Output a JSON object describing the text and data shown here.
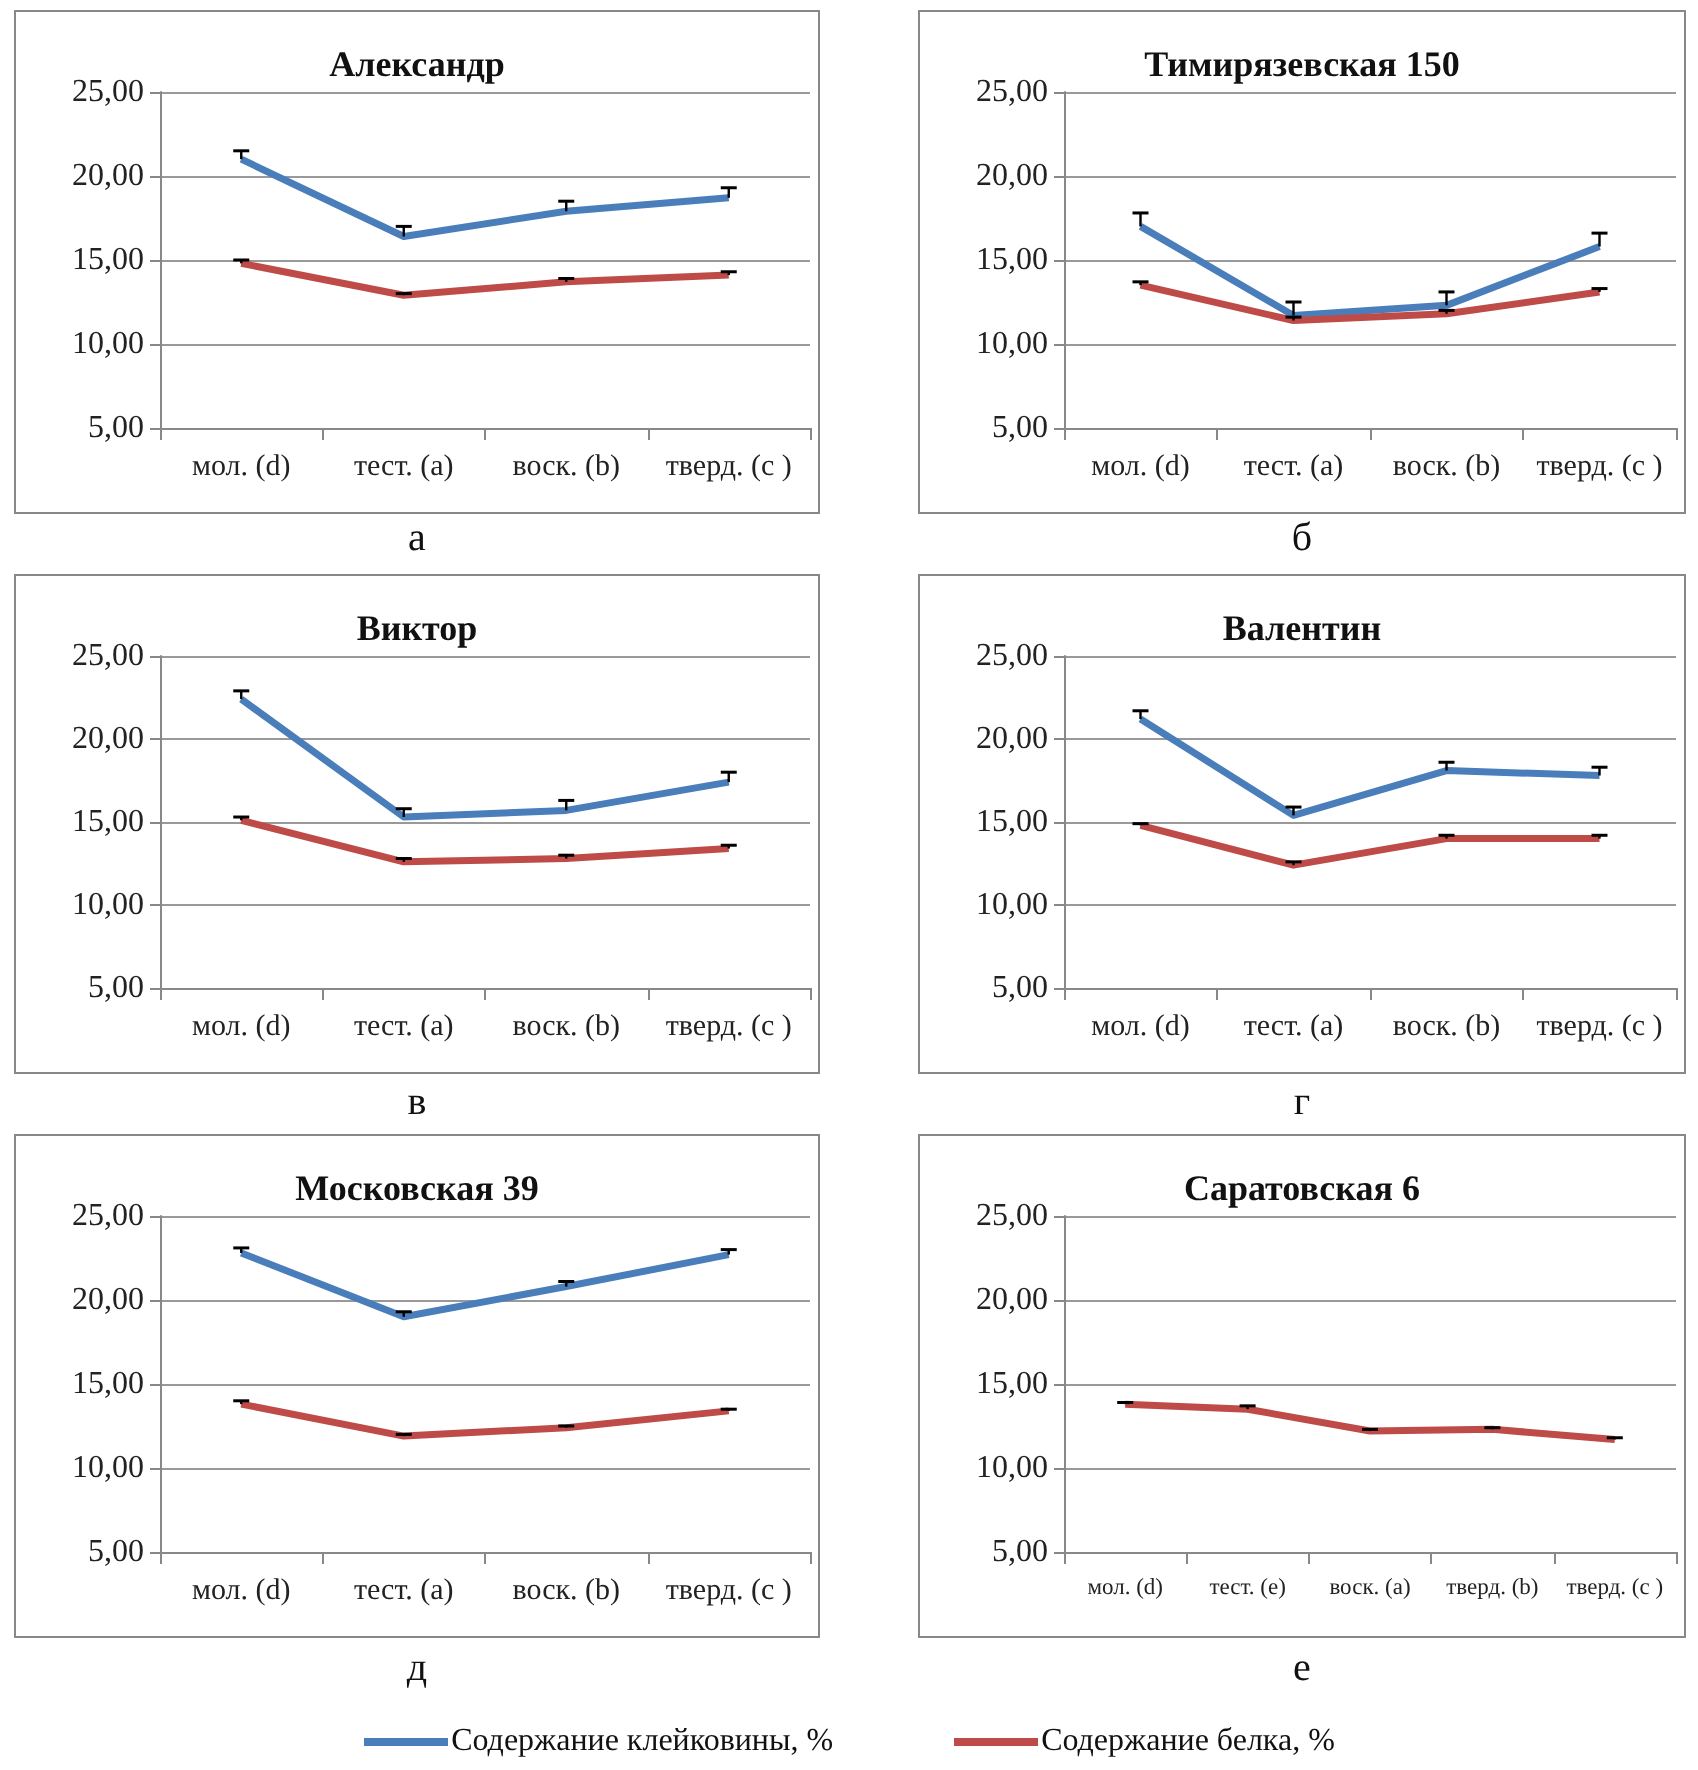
{
  "chart_data": [
    {
      "type": "line",
      "title": "Александр",
      "annotations": [
        "а"
      ],
      "categories": [
        "мол. (d)",
        "тест. (a)",
        "воск. (b)",
        "тверд. (c )"
      ],
      "ylim": [
        5,
        25
      ],
      "yticks": [
        {
          "value": 5,
          "label": "5,00"
        },
        {
          "value": 10,
          "label": "10,00"
        },
        {
          "value": 15,
          "label": "15,00"
        },
        {
          "value": 20,
          "label": "20,00"
        },
        {
          "value": 25,
          "label": "25,00"
        }
      ],
      "grid": "y",
      "marker": "none",
      "legend": "bottom",
      "series": [
        {
          "name": "Содержание клейковины, %",
          "color": "#4a7ebb",
          "values": [
            21.0,
            16.4,
            17.9,
            18.7
          ],
          "errors": [
            [
              21.0,
              21.5
            ],
            [
              16.4,
              17.0
            ],
            [
              17.9,
              18.5
            ],
            [
              18.7,
              19.3
            ]
          ]
        },
        {
          "name": "Содержание белка, %",
          "color": "#be4b48",
          "values": [
            14.8,
            12.9,
            13.7,
            14.1
          ],
          "errors": [
            [
              14.8,
              15.0
            ],
            [
              12.9,
              13.0
            ],
            [
              13.7,
              13.9
            ],
            [
              14.1,
              14.3
            ]
          ]
        }
      ]
    },
    {
      "type": "line",
      "title": "Тимирязевская 150",
      "annotations": [
        "б"
      ],
      "categories": [
        "мол. (d)",
        "тест. (a)",
        "воск. (b)",
        "тверд. (c )"
      ],
      "ylim": [
        5,
        25
      ],
      "yticks": [
        {
          "value": 5,
          "label": "5,00"
        },
        {
          "value": 10,
          "label": "10,00"
        },
        {
          "value": 15,
          "label": "15,00"
        },
        {
          "value": 20,
          "label": "20,00"
        },
        {
          "value": 25,
          "label": "25,00"
        }
      ],
      "grid": "y",
      "marker": "none",
      "series": [
        {
          "name": "Содержание клейковины, %",
          "color": "#4a7ebb",
          "values": [
            17.0,
            11.7,
            12.3,
            15.8
          ],
          "errors": [
            [
              17.0,
              17.8
            ],
            [
              11.7,
              12.5
            ],
            [
              12.3,
              13.1
            ],
            [
              15.8,
              16.6
            ]
          ]
        },
        {
          "name": "Содержание белка, %",
          "color": "#be4b48",
          "values": [
            13.5,
            11.4,
            11.8,
            13.1
          ],
          "errors": [
            [
              13.5,
              13.7
            ],
            [
              11.4,
              11.6
            ],
            [
              11.8,
              12.0
            ],
            [
              13.1,
              13.3
            ]
          ]
        }
      ]
    },
    {
      "type": "line",
      "title": "Виктор",
      "annotations": [
        "в"
      ],
      "categories": [
        "мол. (d)",
        "тест. (a)",
        "воск. (b)",
        "тверд. (c )"
      ],
      "ylim": [
        5,
        25
      ],
      "yticks": [
        {
          "value": 5,
          "label": "5,00"
        },
        {
          "value": 10,
          "label": "10,00"
        },
        {
          "value": 15,
          "label": "15,00"
        },
        {
          "value": 20,
          "label": "20,00"
        },
        {
          "value": 25,
          "label": "25,00"
        }
      ],
      "grid": "y",
      "marker": "none",
      "series": [
        {
          "name": "Содержание клейковины, %",
          "color": "#4a7ebb",
          "values": [
            22.4,
            15.3,
            15.7,
            17.4
          ],
          "errors": [
            [
              22.4,
              22.9
            ],
            [
              15.3,
              15.8
            ],
            [
              15.7,
              16.3
            ],
            [
              17.4,
              18.0
            ]
          ]
        },
        {
          "name": "Содержание белка, %",
          "color": "#be4b48",
          "values": [
            15.1,
            12.6,
            12.8,
            13.4
          ],
          "errors": [
            [
              15.1,
              15.3
            ],
            [
              12.6,
              12.8
            ],
            [
              12.8,
              13.0
            ],
            [
              13.4,
              13.6
            ]
          ]
        }
      ]
    },
    {
      "type": "line",
      "title": "Валентин",
      "annotations": [
        "г"
      ],
      "categories": [
        "мол. (d)",
        "тест. (a)",
        "воск. (b)",
        "тверд. (c )"
      ],
      "ylim": [
        5,
        25
      ],
      "yticks": [
        {
          "value": 5,
          "label": "5,00"
        },
        {
          "value": 10,
          "label": "10,00"
        },
        {
          "value": 15,
          "label": "15,00"
        },
        {
          "value": 20,
          "label": "20,00"
        },
        {
          "value": 25,
          "label": "25,00"
        }
      ],
      "grid": "y",
      "marker": "none",
      "series": [
        {
          "name": "Содержание клейковины, %",
          "color": "#4a7ebb",
          "values": [
            21.2,
            15.4,
            18.1,
            17.8
          ],
          "errors": [
            [
              21.2,
              21.7
            ],
            [
              15.4,
              15.9
            ],
            [
              18.1,
              18.6
            ],
            [
              17.8,
              18.3
            ]
          ]
        },
        {
          "name": "Содержание белка, %",
          "color": "#be4b48",
          "values": [
            14.8,
            12.4,
            14.0,
            14.0
          ],
          "errors": [
            [
              14.8,
              14.9
            ],
            [
              12.4,
              12.6
            ],
            [
              14.0,
              14.2
            ],
            [
              14.0,
              14.2
            ]
          ]
        }
      ]
    },
    {
      "type": "line",
      "title": "Московская 39",
      "annotations": [
        "д"
      ],
      "categories": [
        "мол. (d)",
        "тест. (a)",
        "воск. (b)",
        "тверд. (c )"
      ],
      "ylim": [
        5,
        25
      ],
      "yticks": [
        {
          "value": 5,
          "label": "5,00"
        },
        {
          "value": 10,
          "label": "10,00"
        },
        {
          "value": 15,
          "label": "15,00"
        },
        {
          "value": 20,
          "label": "20,00"
        },
        {
          "value": 25,
          "label": "25,00"
        }
      ],
      "grid": "y",
      "marker": "none",
      "series": [
        {
          "name": "Содержание клейковины, %",
          "color": "#4a7ebb",
          "values": [
            22.8,
            19.0,
            20.8,
            22.7
          ],
          "errors": [
            [
              22.8,
              23.1
            ],
            [
              19.0,
              19.3
            ],
            [
              20.8,
              21.1
            ],
            [
              22.7,
              23.0
            ]
          ]
        },
        {
          "name": "Содержание белка, %",
          "color": "#be4b48",
          "values": [
            13.8,
            11.9,
            12.4,
            13.4
          ],
          "errors": [
            [
              13.8,
              14.0
            ],
            [
              11.9,
              12.0
            ],
            [
              12.4,
              12.5
            ],
            [
              13.4,
              13.5
            ]
          ]
        }
      ]
    },
    {
      "type": "line",
      "title": "Саратовская 6",
      "annotations": [
        "е"
      ],
      "categories": [
        "мол. (d)",
        "тест. (e)",
        "воск. (a)",
        "тверд. (b)",
        "тверд. (c )"
      ],
      "ylim": [
        5,
        25
      ],
      "yticks": [
        {
          "value": 5,
          "label": "5,00"
        },
        {
          "value": 10,
          "label": "10,00"
        },
        {
          "value": 15,
          "label": "15,00"
        },
        {
          "value": 20,
          "label": "20,00"
        },
        {
          "value": 25,
          "label": "25,00"
        }
      ],
      "grid": "y",
      "marker": "none",
      "series": [
        {
          "name": "Содержание белка, %",
          "color": "#be4b48",
          "values": [
            13.8,
            13.5,
            12.2,
            12.3,
            11.7
          ],
          "errors": [
            [
              13.8,
              13.9
            ],
            [
              13.5,
              13.7
            ],
            [
              12.2,
              12.3
            ],
            [
              12.3,
              12.4
            ],
            [
              11.7,
              11.8
            ]
          ]
        }
      ]
    }
  ]
}
